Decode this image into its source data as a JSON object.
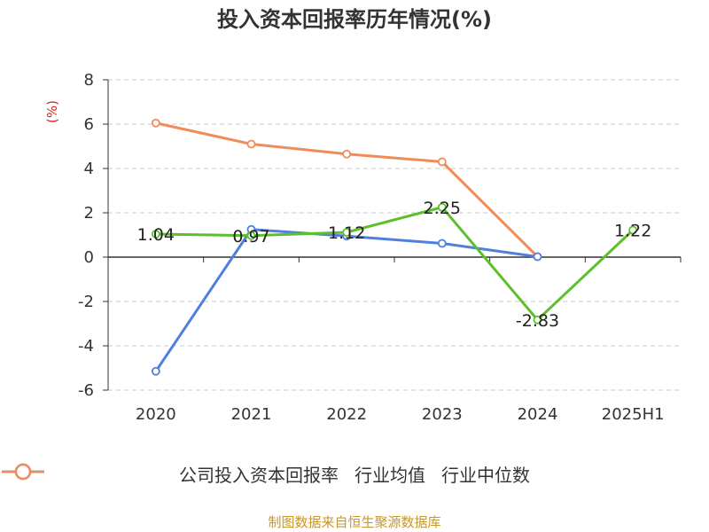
{
  "source": "制图数据来自恒生聚源数据库",
  "chart_data": {
    "type": "line",
    "title": "投入资本回报率历年情况(%)",
    "ylabel": "(%)",
    "xlabel": "",
    "categories": [
      "2020",
      "2021",
      "2022",
      "2023",
      "2024",
      "2025H1"
    ],
    "ylim": [
      -6,
      8
    ],
    "yticks": [
      8,
      6,
      4,
      2,
      0,
      -2,
      -4,
      -6
    ],
    "grid": true,
    "legend_position": "bottom",
    "series": [
      {
        "name": "公司投入资本回报率",
        "color": "#5dc02b",
        "values": [
          1.04,
          0.97,
          1.12,
          2.25,
          -2.83,
          1.22
        ],
        "labels": [
          "1.04",
          "0.97",
          "1.12",
          "2.25",
          "-2.83",
          "1.22"
        ]
      },
      {
        "name": "行业均值",
        "color": "#4f80dc",
        "values": [
          -5.15,
          1.25,
          0.95,
          0.62,
          0.02,
          null
        ]
      },
      {
        "name": "行业中位数",
        "color": "#f08c5a",
        "values": [
          6.05,
          5.1,
          4.65,
          4.3,
          0.02,
          null
        ]
      }
    ]
  }
}
